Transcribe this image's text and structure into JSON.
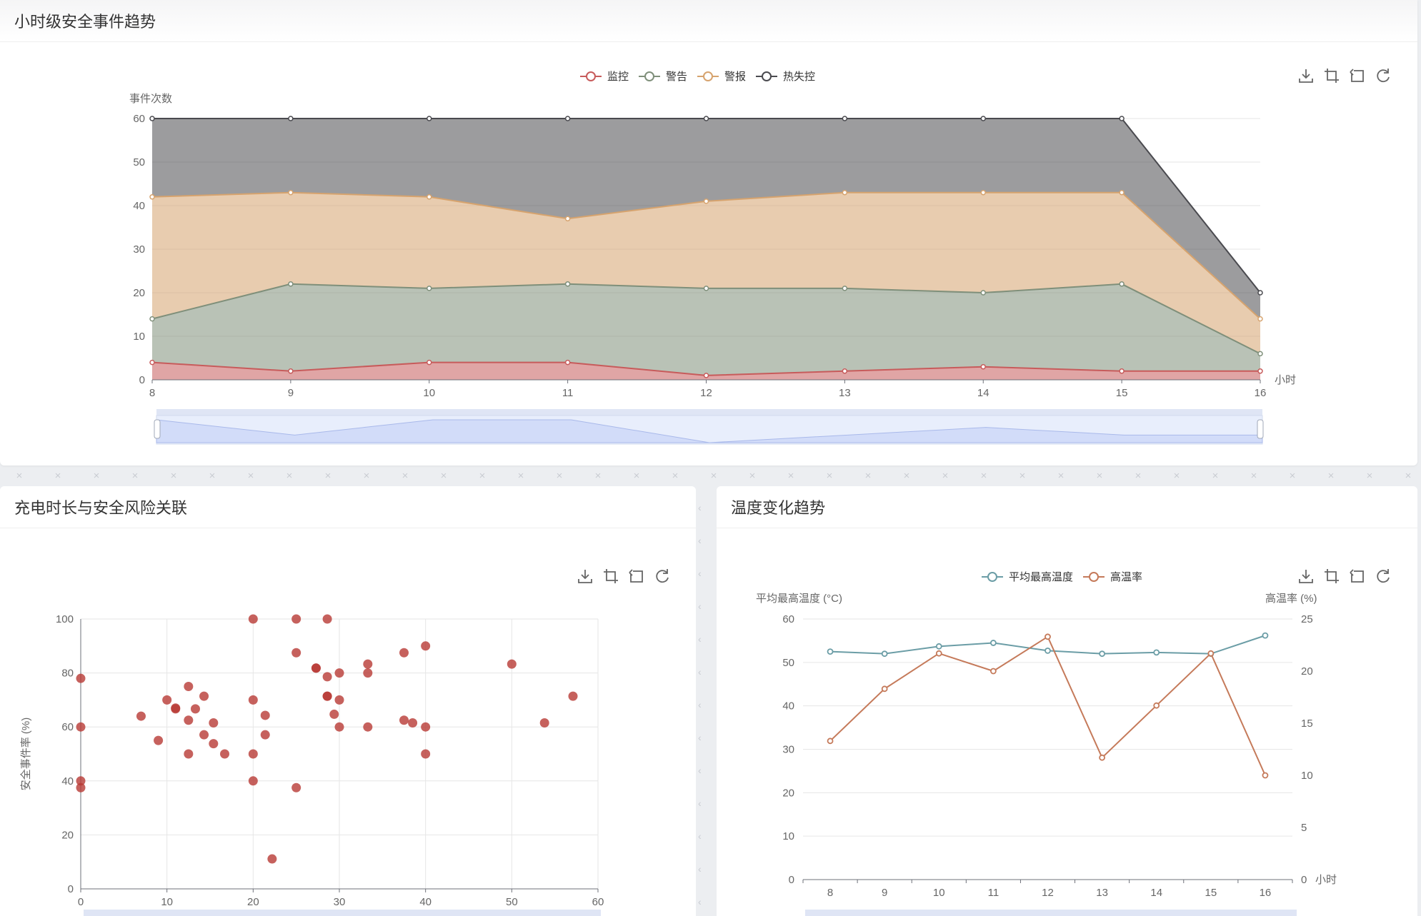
{
  "panels": {
    "hourly": {
      "title": "小时级安全事件趋势",
      "chart_data": {
        "type": "area",
        "stacked": true,
        "x": [
          8,
          9,
          10,
          11,
          12,
          13,
          14,
          15,
          16
        ],
        "xlabel": "小时",
        "ylabel": "事件次数",
        "ylim": [
          0,
          60
        ],
        "yticks": [
          0,
          10,
          20,
          30,
          40,
          50,
          60
        ],
        "legend_position": "top-center",
        "grid": true,
        "data_zoom": true,
        "series": [
          {
            "name": "监控",
            "color": "#c75b5b",
            "values": [
              4,
              2,
              4,
              4,
              1,
              2,
              3,
              2,
              2
            ]
          },
          {
            "name": "警告",
            "color": "#7f8f7a",
            "values": [
              10,
              20,
              17,
              18,
              20,
              19,
              17,
              20,
              4
            ]
          },
          {
            "name": "警报",
            "color": "#d6a36e",
            "values": [
              28,
              21,
              21,
              15,
              20,
              22,
              23,
              21,
              8
            ]
          },
          {
            "name": "热失控",
            "color": "#4a4a4f",
            "values": [
              18,
              17,
              18,
              23,
              19,
              17,
              17,
              17,
              6
            ]
          }
        ]
      }
    },
    "scatter": {
      "title": "充电时长与安全风险关联",
      "chart_data": {
        "type": "scatter",
        "ylabel": "安全事件率 (%)",
        "xlim": [
          0,
          60
        ],
        "ylim": [
          0,
          100
        ],
        "xticks": [
          0,
          10,
          20,
          30,
          40,
          50,
          60
        ],
        "yticks": [
          0,
          20,
          40,
          60,
          80,
          100
        ],
        "color": "#b83a35",
        "grid": true,
        "points": [
          [
            0,
            78
          ],
          [
            0,
            60
          ],
          [
            0,
            40
          ],
          [
            0,
            37.5
          ],
          [
            7,
            64
          ],
          [
            9,
            55
          ],
          [
            10,
            70
          ],
          [
            11,
            67
          ],
          [
            11,
            66.7
          ],
          [
            12.5,
            75
          ],
          [
            12.5,
            62.5
          ],
          [
            12.5,
            50
          ],
          [
            13.3,
            66.7
          ],
          [
            14.3,
            71.4
          ],
          [
            14.3,
            57.1
          ],
          [
            15.4,
            61.5
          ],
          [
            15.4,
            53.8
          ],
          [
            16.7,
            50
          ],
          [
            20,
            100
          ],
          [
            20,
            70
          ],
          [
            20,
            50
          ],
          [
            20,
            40
          ],
          [
            21.4,
            64.3
          ],
          [
            21.4,
            57.1
          ],
          [
            22.2,
            11.1
          ],
          [
            25,
            100
          ],
          [
            25,
            87.5
          ],
          [
            25,
            37.5
          ],
          [
            27.3,
            81.8
          ],
          [
            27.3,
            81.8
          ],
          [
            28.6,
            100
          ],
          [
            28.6,
            78.6
          ],
          [
            28.6,
            71.4
          ],
          [
            28.6,
            71.4
          ],
          [
            29.4,
            64.7
          ],
          [
            30,
            80
          ],
          [
            30,
            70
          ],
          [
            30,
            60
          ],
          [
            33.3,
            83.3
          ],
          [
            33.3,
            80
          ],
          [
            33.3,
            60
          ],
          [
            37.5,
            87.5
          ],
          [
            37.5,
            62.5
          ],
          [
            38.5,
            61.5
          ],
          [
            40,
            90
          ],
          [
            40,
            60
          ],
          [
            40,
            50
          ],
          [
            50,
            83.3
          ],
          [
            53.8,
            61.5
          ],
          [
            57.1,
            71.4
          ]
        ]
      }
    },
    "temperature": {
      "title": "温度变化趋势",
      "chart_data": {
        "type": "line",
        "x": [
          8,
          9,
          10,
          11,
          12,
          13,
          14,
          15,
          16
        ],
        "xlabel": "小时",
        "ylabel_left": "平均最高温度 (°C)",
        "ylabel_right": "高温率 (%)",
        "ylim_left": [
          0,
          60
        ],
        "ylim_right": [
          0,
          25
        ],
        "yticks_left": [
          0,
          10,
          20,
          30,
          40,
          50,
          60
        ],
        "yticks_right": [
          0,
          5,
          10,
          15,
          20,
          25
        ],
        "legend_position": "top-center",
        "data_zoom": true,
        "series": [
          {
            "name": "平均最高温度",
            "axis": "left",
            "color": "#6b9da6",
            "values": [
              52.5,
              52,
              53.7,
              54.5,
              52.7,
              52,
              52.3,
              52,
              56.2
            ]
          },
          {
            "name": "高温率",
            "axis": "right",
            "color": "#c57a5a",
            "values": [
              13.3,
              18.3,
              21.7,
              20,
              23.3,
              11.7,
              16.7,
              21.7,
              10
            ]
          }
        ]
      }
    }
  },
  "toolbox": {
    "save_label": "保存为图片",
    "zoom_label": "区域缩放",
    "zoom_reset_label": "区域缩放还原",
    "restore_label": "还原"
  }
}
